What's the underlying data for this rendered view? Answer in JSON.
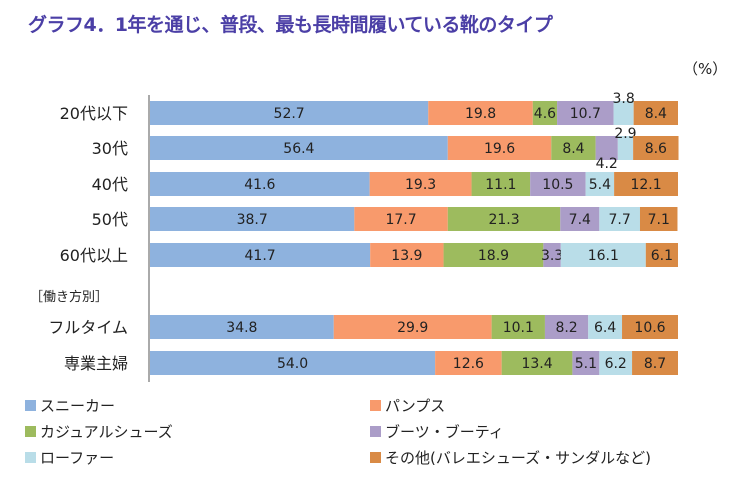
{
  "chart_data": {
    "type": "bar",
    "stacked": true,
    "orientation": "horizontal",
    "title": "グラフ4．1年を通じ、普段、最も長時間履いている靴のタイプ",
    "unit_label": "（%）",
    "group_label": "［働き方別］",
    "categories": [
      "20代以下",
      "30代",
      "40代",
      "50代",
      "60代以上",
      "フルタイム",
      "専業主婦"
    ],
    "series": [
      {
        "name": "スニーカー",
        "color": "#8eb2de",
        "values": [
          52.7,
          56.4,
          41.6,
          38.7,
          41.7,
          34.8,
          54.0
        ]
      },
      {
        "name": "パンプス",
        "color": "#f89a6c",
        "values": [
          19.8,
          19.6,
          19.3,
          17.7,
          13.9,
          29.9,
          12.6
        ]
      },
      {
        "name": "カジュアルシューズ",
        "color": "#9dbb5e",
        "values": [
          4.6,
          8.4,
          11.1,
          21.3,
          18.9,
          10.1,
          13.4
        ]
      },
      {
        "name": "ブーツ・ブーティ",
        "color": "#ab9dc8",
        "values": [
          10.7,
          4.2,
          10.5,
          7.4,
          3.3,
          8.2,
          5.1
        ]
      },
      {
        "name": "ローファー",
        "color": "#b9dde8",
        "values": [
          3.8,
          2.9,
          5.4,
          7.7,
          16.1,
          6.4,
          6.2
        ]
      },
      {
        "name": "その他(バレエシューズ・サンダルなど)",
        "color": "#d98a45",
        "values": [
          8.4,
          8.6,
          12.1,
          7.1,
          6.1,
          10.6,
          8.7
        ]
      }
    ],
    "xlim": [
      0,
      100
    ],
    "grid": false,
    "legend_position": "bottom"
  }
}
